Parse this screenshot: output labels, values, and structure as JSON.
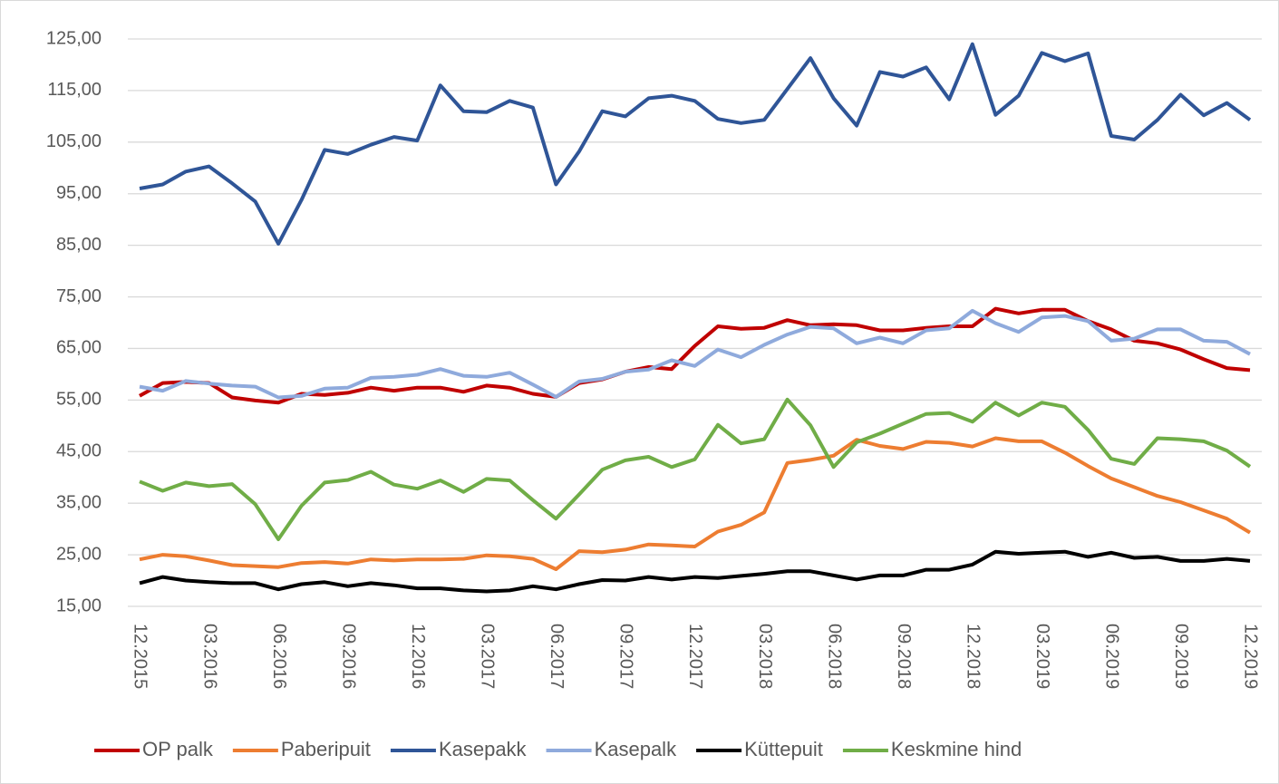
{
  "chart_data": {
    "type": "line",
    "categories": [
      "12.2015",
      null,
      null,
      "03.2016",
      null,
      null,
      "06.2016",
      null,
      null,
      "09.2016",
      null,
      null,
      "12.2016",
      null,
      null,
      "03.2017",
      null,
      null,
      "06.2017",
      null,
      null,
      "09.2017",
      null,
      null,
      "12.2017",
      null,
      null,
      "03.2018",
      null,
      null,
      "06.2018",
      null,
      null,
      "09.2018",
      null,
      null,
      "12.2018",
      null,
      null,
      "03.2019",
      null,
      null,
      "06.2019",
      null,
      null,
      "09.2019",
      null,
      null,
      "12.2019"
    ],
    "series": [
      {
        "name": "OP palk",
        "color": "#c00000",
        "values": [
          55.8,
          58.3,
          58.5,
          58.3,
          55.5,
          54.9,
          54.5,
          56.2,
          56,
          56.4,
          57.4,
          56.8,
          57.4,
          57.4,
          56.6,
          57.8,
          57.4,
          56.2,
          55.6,
          58.3,
          59,
          60.5,
          61.4,
          61,
          65.5,
          69.3,
          68.8,
          69,
          70.5,
          69.5,
          69.7,
          69.5,
          68.5,
          68.5,
          69,
          69.3,
          69.3,
          72.7,
          71.8,
          72.5,
          72.5,
          70.3,
          68.7,
          66.5,
          66,
          64.8,
          62.9,
          61.2,
          60.8
        ]
      },
      {
        "name": "Paberipuit",
        "color": "#ed7d31",
        "values": [
          24.1,
          25,
          24.7,
          23.9,
          23,
          22.8,
          22.6,
          23.4,
          23.6,
          23.3,
          24.1,
          23.9,
          24.1,
          24.1,
          24.2,
          24.9,
          24.7,
          24.2,
          22.2,
          25.7,
          25.5,
          26,
          27,
          26.8,
          26.6,
          29.5,
          30.8,
          33.2,
          42.8,
          43.4,
          44.2,
          47.3,
          46.1,
          45.5,
          46.9,
          46.7,
          46,
          47.6,
          47,
          47,
          44.8,
          42.2,
          39.8,
          38.1,
          36.4,
          35.2,
          33.6,
          32,
          29.3
        ]
      },
      {
        "name": "Kasepakk",
        "color": "#2f5597",
        "values": [
          96,
          96.8,
          99.3,
          100.3,
          97,
          93.5,
          85.3,
          93.8,
          103.5,
          102.7,
          104.5,
          106,
          105.3,
          116,
          111,
          110.8,
          113,
          111.7,
          96.8,
          103.2,
          111,
          110,
          113.5,
          114,
          113,
          109.5,
          108.7,
          109.3,
          115.3,
          121.3,
          113.5,
          108.2,
          118.6,
          117.7,
          119.5,
          113.3,
          124,
          110.3,
          114,
          122.3,
          120.7,
          122.2,
          106.2,
          105.5,
          109.3,
          114.2,
          110.2,
          112.6,
          109.3
        ]
      },
      {
        "name": "Kasepalk",
        "color": "#8faadc",
        "values": [
          57.6,
          56.8,
          58.7,
          58.2,
          57.8,
          57.6,
          55.5,
          55.8,
          57.2,
          57.4,
          59.3,
          59.5,
          59.9,
          61,
          59.7,
          59.5,
          60.3,
          58,
          55.6,
          58.6,
          59.1,
          60.5,
          60.9,
          62.7,
          61.6,
          64.8,
          63.3,
          65.7,
          67.7,
          69.2,
          68.9,
          66,
          67.1,
          66,
          68.5,
          68.9,
          72.3,
          69.9,
          68.2,
          71,
          71.3,
          70.3,
          66.5,
          66.9,
          68.7,
          68.7,
          66.5,
          66.3,
          63.9
        ]
      },
      {
        "name": "Küttepuit",
        "color": "#000000",
        "values": [
          19.5,
          20.7,
          20,
          19.7,
          19.5,
          19.5,
          18.3,
          19.3,
          19.7,
          18.9,
          19.5,
          19.1,
          18.5,
          18.5,
          18.1,
          17.9,
          18.1,
          18.9,
          18.3,
          19.3,
          20.1,
          20,
          20.7,
          20.2,
          20.7,
          20.5,
          20.9,
          21.3,
          21.8,
          21.8,
          21,
          20.2,
          21,
          21,
          22.1,
          22.1,
          23.1,
          25.6,
          25.2,
          25.4,
          25.6,
          24.6,
          25.4,
          24.4,
          24.6,
          23.8,
          23.8,
          24.2,
          23.8
        ]
      },
      {
        "name": "Keskmine hind",
        "color": "#70ad47",
        "values": [
          39.2,
          37.4,
          39,
          38.3,
          38.7,
          34.8,
          28,
          34.5,
          39,
          39.5,
          41.1,
          38.6,
          37.8,
          39.4,
          37.2,
          39.7,
          39.4,
          35.6,
          32,
          36.7,
          41.5,
          43.3,
          44,
          42,
          43.5,
          50.2,
          46.6,
          47.4,
          55.1,
          50.1,
          42,
          46.8,
          48.5,
          50.4,
          52.3,
          52.5,
          50.8,
          54.5,
          52,
          54.5,
          53.7,
          49.2,
          43.6,
          42.6,
          47.6,
          47.4,
          47,
          45.2,
          42.1
        ]
      }
    ],
    "ylim": [
      15,
      125
    ],
    "yticks": [
      {
        "value": 15,
        "label": "15,00"
      },
      {
        "value": 25,
        "label": "25,00"
      },
      {
        "value": 35,
        "label": "35,00"
      },
      {
        "value": 45,
        "label": "45,00"
      },
      {
        "value": 55,
        "label": "55,00"
      },
      {
        "value": 65,
        "label": "65,00"
      },
      {
        "value": 75,
        "label": "75,00"
      },
      {
        "value": 85,
        "label": "85,00"
      },
      {
        "value": 95,
        "label": "95,00"
      },
      {
        "value": 105,
        "label": "105,00"
      },
      {
        "value": 115,
        "label": "115,00"
      },
      {
        "value": 125,
        "label": "125,00"
      }
    ],
    "grid": true,
    "legend": "bottom"
  }
}
